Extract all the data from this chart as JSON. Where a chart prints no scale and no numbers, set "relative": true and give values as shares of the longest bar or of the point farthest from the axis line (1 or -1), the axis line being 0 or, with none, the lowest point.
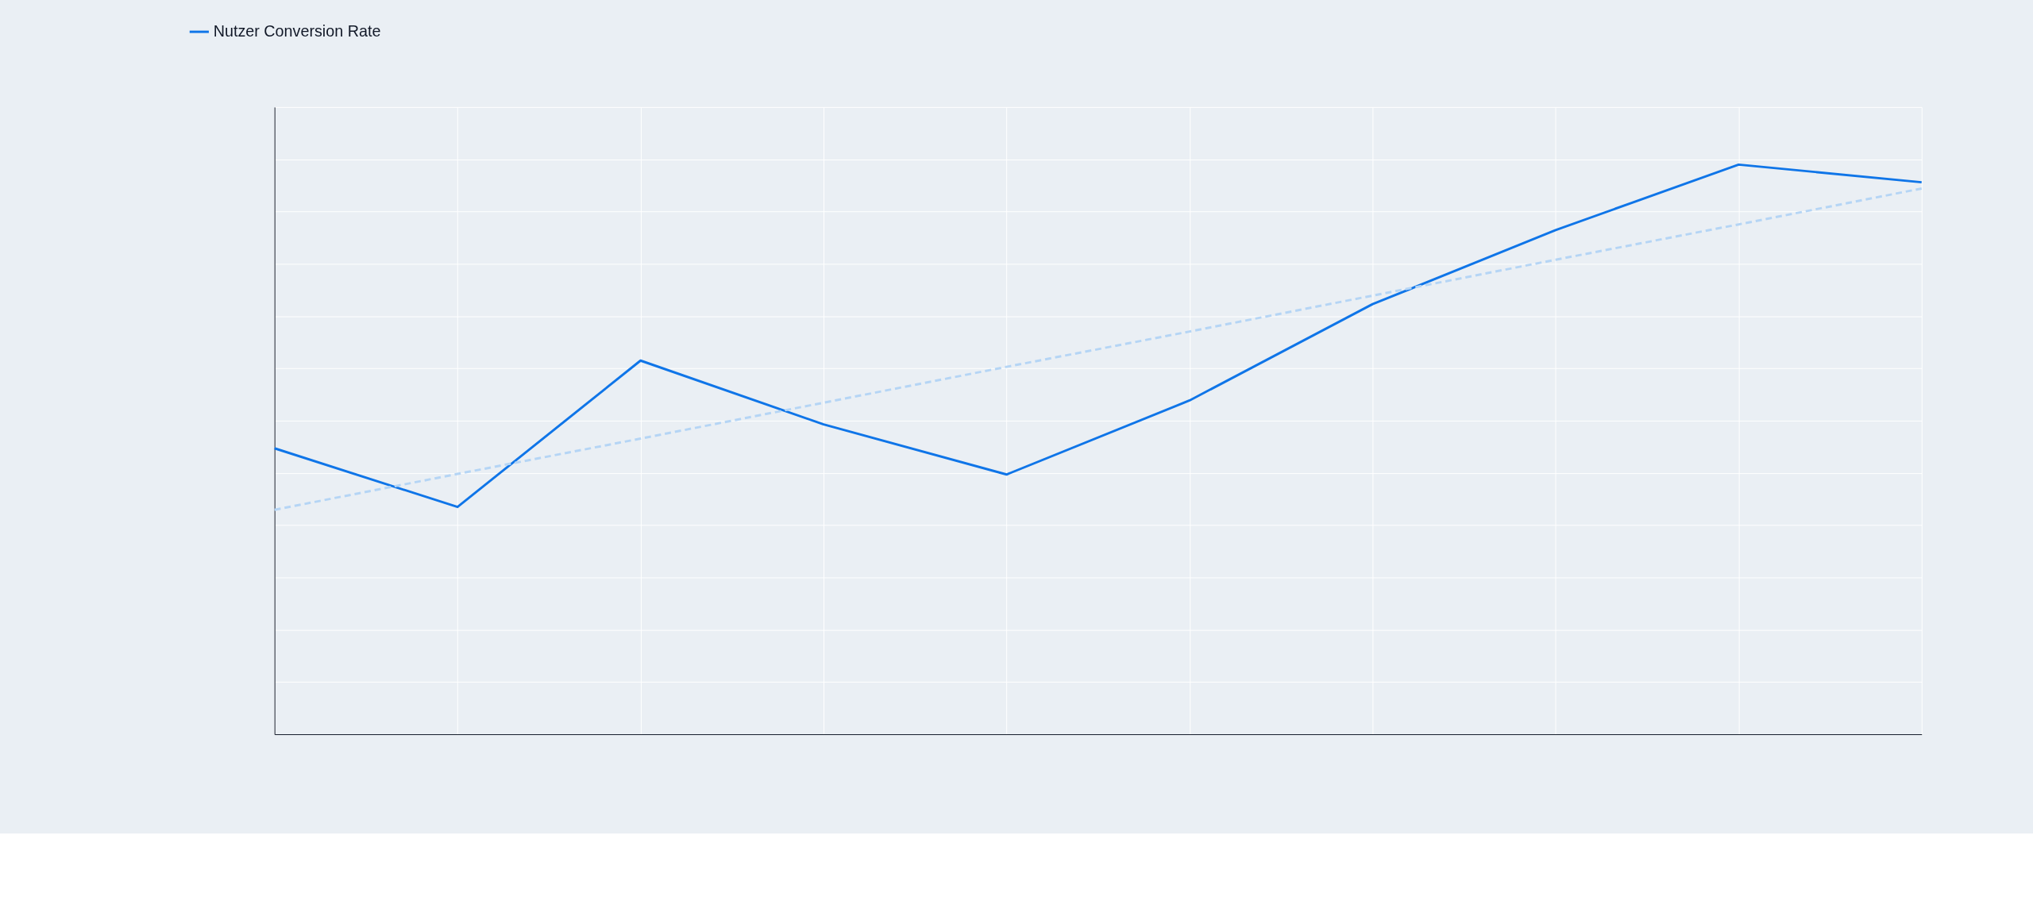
{
  "chart_data": {
    "type": "line",
    "relative": true,
    "categories": [
      null,
      null,
      null,
      null,
      null,
      null,
      null,
      null,
      null,
      null
    ],
    "series": [
      {
        "name": "Nutzer Conversion Rate",
        "color": "#0f75e8",
        "values": [
          0.502,
          0.399,
          0.656,
          0.544,
          0.456,
          0.586,
          0.755,
          0.885,
          1,
          0.969
        ]
      },
      {
        "type": "line",
        "color": "#b5d5f5",
        "line_style": "dashed",
        "values": [
          0.394,
          0.457,
          0.519,
          0.582,
          0.645,
          0.707,
          0.77,
          0.833,
          0.895,
          0.958
        ]
      }
    ],
    "grid": true,
    "legend": "top left",
    "marker": "none",
    "line_style": "solid"
  }
}
